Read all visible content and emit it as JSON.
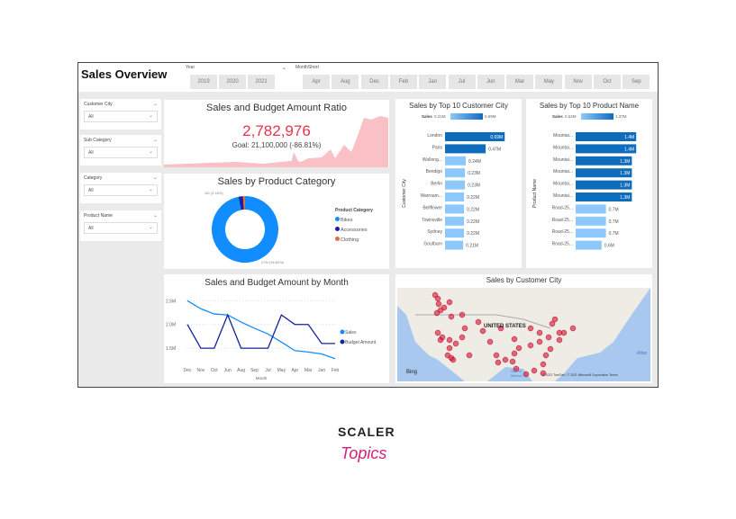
{
  "header": {
    "title": "Sales Overview",
    "year_label": "Year",
    "month_label": "MonthShort",
    "years": [
      "2019",
      "2020",
      "2021"
    ],
    "months": [
      "Apr",
      "Aug",
      "Dec",
      "Feb",
      "Jan",
      "Jul",
      "Jun",
      "Mar",
      "May",
      "Nov",
      "Oct",
      "Sep"
    ]
  },
  "slicers": [
    {
      "label": "Customer City",
      "value": "All"
    },
    {
      "label": "Sub Category",
      "value": "All"
    },
    {
      "label": "Category",
      "value": "All"
    },
    {
      "label": "Product Name",
      "value": "All"
    }
  ],
  "kpi": {
    "title": "Sales and Budget Amount Ratio",
    "value": "2,782,976",
    "goal": "Goal: 21,100,000 (-86.81%)",
    "color": "#e8344a"
  },
  "donut": {
    "title": "Sales by Product Category",
    "legend_title": "Product Category",
    "slices": [
      {
        "name": "Bikes",
        "value": 96.82,
        "color": "#118dff"
      },
      {
        "name": "Accessories",
        "value": 2.2,
        "color": "#12239e"
      },
      {
        "name": "Clothing",
        "value": 0.98,
        "color": "#e66c37"
      }
    ],
    "label_small": "1M (3.18%)",
    "label_large": "27M (96.82%)"
  },
  "chart_data": [
    {
      "type": "line",
      "title": "Sales and Budget Amount by Month",
      "xlabel": "Month",
      "ylabel": "",
      "categories": [
        "Dec",
        "Nov",
        "Oct",
        "Jun",
        "Aug",
        "Sep",
        "Jul",
        "May",
        "Apr",
        "Mar",
        "Jan",
        "Feb"
      ],
      "yticks": [
        "1.5M",
        "2.0M",
        "2.5M"
      ],
      "ylim": [
        1.2,
        2.6
      ],
      "series": [
        {
          "name": "Sales",
          "color": "#118dff",
          "values": [
            2.5,
            2.33,
            2.22,
            2.2,
            2.05,
            1.92,
            1.8,
            1.63,
            1.45,
            1.42,
            1.38,
            1.28
          ]
        },
        {
          "name": "Budget Amount",
          "color": "#12239e",
          "values": [
            2.0,
            1.5,
            1.5,
            2.2,
            1.5,
            1.5,
            1.5,
            2.2,
            2.0,
            2.0,
            1.6,
            1.6
          ]
        }
      ]
    },
    {
      "type": "bar",
      "title": "Sales by Top 10 Customer City",
      "ylabel": "Customer City",
      "legend": "Sales",
      "legend_min": "0.21M",
      "legend_max": "0.69M",
      "max": 0.75,
      "categories": [
        "London",
        "Paris",
        "Wollong...",
        "Bendigo",
        "Berlin",
        "Warrnam...",
        "Bellflower",
        "Townsville",
        "Sydney",
        "Goulburn"
      ],
      "values": [
        0.69,
        0.47,
        0.24,
        0.23,
        0.23,
        0.22,
        0.22,
        0.22,
        0.22,
        0.21
      ],
      "labels": [
        "0.69M",
        "0.47M",
        "0.24M",
        "0.23M",
        "0.23M",
        "0.22M",
        "0.22M",
        "0.22M",
        "0.22M",
        "0.21M"
      ]
    },
    {
      "type": "bar",
      "title": "Sales by Top 10 Product Name",
      "ylabel": "Product Name",
      "legend": "Sales",
      "legend_min": "0.62M",
      "legend_max": "1.37M",
      "max": 1.5,
      "categories": [
        "Mountai...",
        "Mountai...",
        "Mountai...",
        "Mountai...",
        "Mountai...",
        "Mountai...",
        "Road-25...",
        "Road-25...",
        "Road-25...",
        "Road-25..."
      ],
      "values": [
        1.4,
        1.4,
        1.3,
        1.3,
        1.3,
        1.3,
        0.7,
        0.7,
        0.7,
        0.6
      ],
      "labels": [
        "1.4M",
        "1.4M",
        "1.3M",
        "1.3M",
        "1.3M",
        "1.3M",
        "0.7M",
        "0.7M",
        "0.7M",
        "0.6M"
      ]
    }
  ],
  "map": {
    "title": "Sales by Customer City",
    "country": "UNITED STATES",
    "bing": "Bing",
    "copyright": "© 2021 TomTom, © 2021 Microsoft Corporation  Terms",
    "ocean": "Atlan",
    "gulf": "Gulf of Mexico"
  }
}
